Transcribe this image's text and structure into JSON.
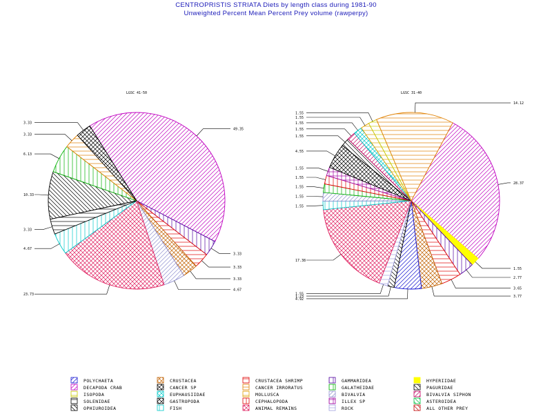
{
  "header": {
    "title": "CENTROPRISTIS STRIATA Diets by length class during 1981-90",
    "subtitle": "Unweighted Percent Mean Percent Prey  volume (rawperpy)"
  },
  "legend": {
    "items": [
      {
        "label": "POLYCHAETA",
        "color": "#1010d0",
        "pattern": "diag"
      },
      {
        "label": "DECAPODA CRAB",
        "color": "#c000c0",
        "pattern": "diag"
      },
      {
        "label": "ISOPODA",
        "color": "#c8c800",
        "pattern": "horiz"
      },
      {
        "label": "SOLENIDAE",
        "color": "#000000",
        "pattern": "horiz"
      },
      {
        "label": "OPHIUROIDEA",
        "color": "#000000",
        "pattern": "antidiag"
      },
      {
        "label": "CRUSTACEA",
        "color": "#c06000",
        "pattern": "cross"
      },
      {
        "label": "CANCER SP",
        "color": "#000000",
        "pattern": "cross"
      },
      {
        "label": "EUPHAUSIIDAE",
        "color": "#00c8c8",
        "pattern": "cross"
      },
      {
        "label": "GASTROPODA",
        "color": "#000000",
        "pattern": "cross"
      },
      {
        "label": "FISH",
        "color": "#00c8c8",
        "pattern": "vert"
      },
      {
        "label": "CRUSTACEA SHRIMP",
        "color": "#e00000",
        "pattern": "horiz"
      },
      {
        "label": "CANCER IRRORATUS",
        "color": "#e08000",
        "pattern": "horiz"
      },
      {
        "label": "MOLLUSCA",
        "color": "#e0a000",
        "pattern": "horiz"
      },
      {
        "label": "CEPHALOPODA",
        "color": "#e00000",
        "pattern": "vert"
      },
      {
        "label": "ANIMAL REMAINS",
        "color": "#e02060",
        "pattern": "cross"
      },
      {
        "label": "GAMMARIDEA",
        "color": "#5000a0",
        "pattern": "vert"
      },
      {
        "label": "GALATHEIDAE",
        "color": "#00b000",
        "pattern": "vert"
      },
      {
        "label": "BIVALVIA",
        "color": "#9090d0",
        "pattern": "diag"
      },
      {
        "label": "ILLEX SP",
        "color": "#a000a0",
        "pattern": "grid"
      },
      {
        "label": "ROCK",
        "color": "#a0a0e0",
        "pattern": "horiz"
      },
      {
        "label": "HYPERIIDAE",
        "color": "#ffff00",
        "pattern": "solid"
      },
      {
        "label": "PAGURIDAE",
        "color": "#000000",
        "pattern": "antidiag"
      },
      {
        "label": "BIVALVIA SIPHON",
        "color": "#c00060",
        "pattern": "diag"
      },
      {
        "label": "ASTEROIDEA",
        "color": "#00c040",
        "pattern": "antidiag"
      },
      {
        "label": "ALL OTHER PREY",
        "color": "#c00000",
        "pattern": "antidiag"
      }
    ]
  },
  "chart_data": [
    {
      "type": "pie",
      "title": "LGSC 41-50",
      "slices": [
        {
          "label": "DECAPODA CRAB",
          "value": 49.35
        },
        {
          "label": "GAMMARIDEA",
          "value": 3.33
        },
        {
          "label": "CRUSTACEA SHRIMP",
          "value": 3.33
        },
        {
          "label": "CRUSTACEA",
          "value": 3.33
        },
        {
          "label": "BIVALVIA",
          "value": 4.67
        },
        {
          "label": "ANIMAL REMAINS",
          "value": 23.73
        },
        {
          "label": "FISH",
          "value": 4.67
        },
        {
          "label": "SOLENIDAE",
          "value": 3.33
        },
        {
          "label": "OPHIUROIDEA",
          "value": 10.33
        },
        {
          "label": "GALATHEIDAE",
          "value": 6.13
        },
        {
          "label": "CANCER IRRORATUS",
          "value": 3.33
        },
        {
          "label": "GASTROPODA",
          "value": 3.33
        }
      ],
      "value_labels": [
        "49.35",
        "3.33",
        "3.33",
        "3.33",
        "4.67",
        "23.73",
        "4.67",
        "3.33",
        "10.33",
        "6.13",
        "3.33",
        "3.33"
      ]
    },
    {
      "type": "pie",
      "title": "LGSC 31-40",
      "slices": [
        {
          "label": "DECAPODA CRAB",
          "value": 28.37
        },
        {
          "label": "HYPERIIDAE",
          "value": 1.55
        },
        {
          "label": "GAMMARIDEA",
          "value": 2.77
        },
        {
          "label": "CRUSTACEA SHRIMP",
          "value": 3.65
        },
        {
          "label": "CRUSTACEA",
          "value": 3.77
        },
        {
          "label": "POLYCHAETA",
          "value": 4.92
        },
        {
          "label": "PAGURIDAE",
          "value": 1.23
        },
        {
          "label": "ROCK",
          "value": 1.55
        },
        {
          "label": "ANIMAL REMAINS",
          "value": 17.38
        },
        {
          "label": "FISH",
          "value": 1.55
        },
        {
          "label": "BIVALVIA",
          "value": 1.55
        },
        {
          "label": "GALATHEIDAE",
          "value": 1.55
        },
        {
          "label": "CEPHALOPODA",
          "value": 1.55
        },
        {
          "label": "ILLEX SP",
          "value": 1.55
        },
        {
          "label": "GASTROPODA",
          "value": 4.55
        },
        {
          "label": "OPHIUROIDEA",
          "value": 1.55
        },
        {
          "label": "BIVALVIA SIPHON",
          "value": 1.55
        },
        {
          "label": "EUPHAUSIIDAE",
          "value": 1.55
        },
        {
          "label": "MOLLUSCA",
          "value": 1.55
        },
        {
          "label": "ISOPODA",
          "value": 1.55
        },
        {
          "label": "CANCER IRRORATUS",
          "value": 14.12
        }
      ],
      "value_labels": [
        "28.37",
        "1.55",
        "2.77",
        "3.65",
        "3.77",
        "4.92",
        "1.23",
        "1.55",
        "17.38",
        "1.55",
        "1.55",
        "1.55",
        "1.55",
        "1.55",
        "4.55",
        "1.55",
        "1.55",
        "1.55",
        "1.55",
        "1.55",
        "14.12"
      ]
    }
  ]
}
